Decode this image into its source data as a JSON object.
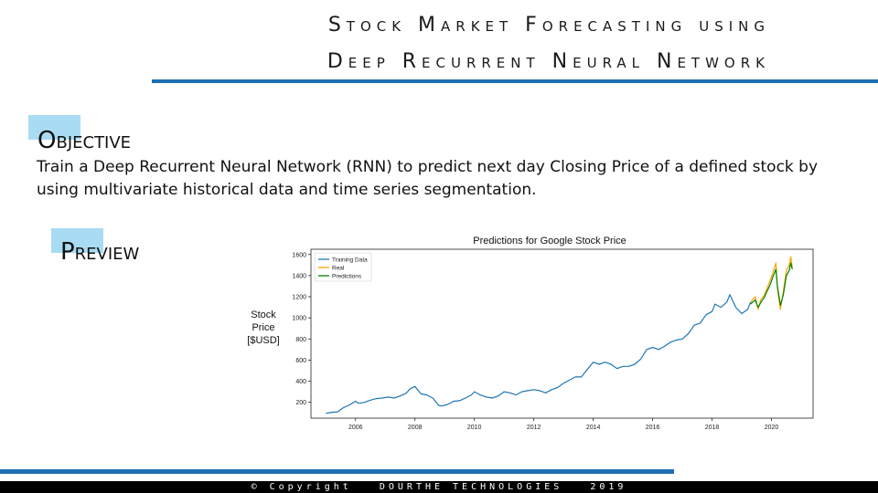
{
  "title": {
    "line1": "Stock Market Forecasting using",
    "line2": "Deep Recurrent Neural Network"
  },
  "objective": {
    "heading": "Objective",
    "text": "Train a Deep Recurrent Neural Network (RNN) to predict next day Closing Price of a defined stock by using multivariate historical data and time series segmentation."
  },
  "preview": {
    "heading": "Preview",
    "y_caption": "Stock Price [$USD]"
  },
  "colors": {
    "title_rule": "#1f6fb2",
    "accent_box": "#a9dcf3",
    "footer_bg": "#000000",
    "training": "#1f77b4",
    "real": "#ffa500",
    "predictions": "#008000"
  },
  "chart_data": {
    "type": "line",
    "title": "Predictions for Google Stock Price",
    "xlabel": "",
    "ylabel": "",
    "xlim": [
      2004.5,
      2021.4
    ],
    "ylim": [
      50,
      1650
    ],
    "xticks": [
      2006,
      2008,
      2010,
      2012,
      2014,
      2016,
      2018,
      2020
    ],
    "yticks": [
      200,
      400,
      600,
      800,
      1000,
      1200,
      1400,
      1600
    ],
    "grid": false,
    "legend_position": "top-left",
    "series": [
      {
        "name": "Training Data",
        "x": [
          2005.0,
          2005.2,
          2005.4,
          2005.6,
          2005.8,
          2006.0,
          2006.1,
          2006.3,
          2006.5,
          2006.7,
          2006.9,
          2007.1,
          2007.3,
          2007.5,
          2007.7,
          2007.85,
          2008.0,
          2008.2,
          2008.4,
          2008.6,
          2008.8,
          2008.9,
          2009.1,
          2009.3,
          2009.5,
          2009.7,
          2009.9,
          2010.0,
          2010.2,
          2010.4,
          2010.6,
          2010.8,
          2011.0,
          2011.2,
          2011.4,
          2011.6,
          2011.8,
          2012.0,
          2012.2,
          2012.4,
          2012.6,
          2012.8,
          2013.0,
          2013.2,
          2013.4,
          2013.6,
          2013.8,
          2014.0,
          2014.2,
          2014.4,
          2014.6,
          2014.8,
          2015.0,
          2015.2,
          2015.4,
          2015.6,
          2015.8,
          2016.0,
          2016.2,
          2016.4,
          2016.6,
          2016.8,
          2017.0,
          2017.2,
          2017.4,
          2017.6,
          2017.8,
          2018.0,
          2018.1,
          2018.3,
          2018.5,
          2018.6,
          2018.8,
          2019.0,
          2019.2,
          2019.3
        ],
        "y": [
          95,
          105,
          110,
          150,
          175,
          210,
          190,
          200,
          220,
          235,
          240,
          250,
          240,
          260,
          285,
          330,
          350,
          280,
          270,
          240,
          170,
          165,
          180,
          210,
          215,
          240,
          270,
          300,
          270,
          250,
          240,
          260,
          300,
          290,
          270,
          300,
          310,
          320,
          310,
          290,
          320,
          340,
          380,
          410,
          440,
          440,
          510,
          580,
          560,
          580,
          560,
          520,
          540,
          540,
          560,
          610,
          700,
          720,
          700,
          730,
          770,
          790,
          800,
          850,
          930,
          950,
          1030,
          1060,
          1130,
          1100,
          1150,
          1220,
          1100,
          1040,
          1080,
          1150
        ]
      },
      {
        "name": "Real",
        "x": [
          2019.3,
          2019.45,
          2019.55,
          2019.65,
          2019.75,
          2019.85,
          2019.95,
          2020.05,
          2020.15,
          2020.2,
          2020.3,
          2020.4,
          2020.5,
          2020.6,
          2020.65,
          2020.7
        ],
        "y": [
          1150,
          1200,
          1080,
          1180,
          1210,
          1280,
          1350,
          1430,
          1520,
          1280,
          1080,
          1250,
          1450,
          1500,
          1580,
          1480
        ]
      },
      {
        "name": "Predictions",
        "x": [
          2019.3,
          2019.45,
          2019.55,
          2019.65,
          2019.75,
          2019.85,
          2019.95,
          2020.05,
          2020.15,
          2020.2,
          2020.3,
          2020.4,
          2020.5,
          2020.6,
          2020.65,
          2020.7
        ],
        "y": [
          1130,
          1170,
          1100,
          1150,
          1190,
          1250,
          1310,
          1390,
          1460,
          1300,
          1120,
          1220,
          1400,
          1450,
          1520,
          1460
        ]
      }
    ]
  },
  "footer": {
    "text": "© Copyright   DOURTHE TECHNOLOGIES   2019"
  }
}
